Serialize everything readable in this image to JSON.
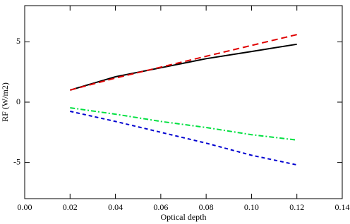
{
  "chart_data": {
    "type": "line",
    "xlabel": "Optical depth",
    "ylabel": "RF (W/m2)",
    "x": [
      0.02,
      0.04,
      0.06,
      0.08,
      0.1,
      0.12
    ],
    "series": [
      {
        "color": "#000000",
        "dash": "solid",
        "values": [
          1.0,
          2.1,
          2.85,
          3.6,
          4.2,
          4.8
        ]
      },
      {
        "color": "#e00000",
        "dash": "dashed",
        "values": [
          1.0,
          2.0,
          2.9,
          3.8,
          4.7,
          5.6
        ]
      },
      {
        "color": "#00e040",
        "dash": "dashdot",
        "values": [
          -0.47,
          -1.0,
          -1.6,
          -2.1,
          -2.7,
          -3.14
        ]
      },
      {
        "color": "#0000d0",
        "dash": "dotted",
        "values": [
          -0.76,
          -1.6,
          -2.5,
          -3.4,
          -4.4,
          -5.2
        ]
      }
    ],
    "xlim": [
      0,
      0.14
    ],
    "xticks": [
      {
        "value": 0,
        "label": "0.00"
      },
      {
        "value": 0.02,
        "label": "0.02"
      },
      {
        "value": 0.04,
        "label": "0.04"
      },
      {
        "value": 0.06,
        "label": "0.06"
      },
      {
        "value": 0.08,
        "label": "0.08"
      },
      {
        "value": 0.1,
        "label": "0.10"
      },
      {
        "value": 0.12,
        "label": "0.12"
      },
      {
        "value": 0.14,
        "label": "0.14"
      }
    ],
    "ylim": [
      -8,
      8
    ],
    "yticks": [
      -5,
      0,
      5
    ],
    "grid": false
  }
}
